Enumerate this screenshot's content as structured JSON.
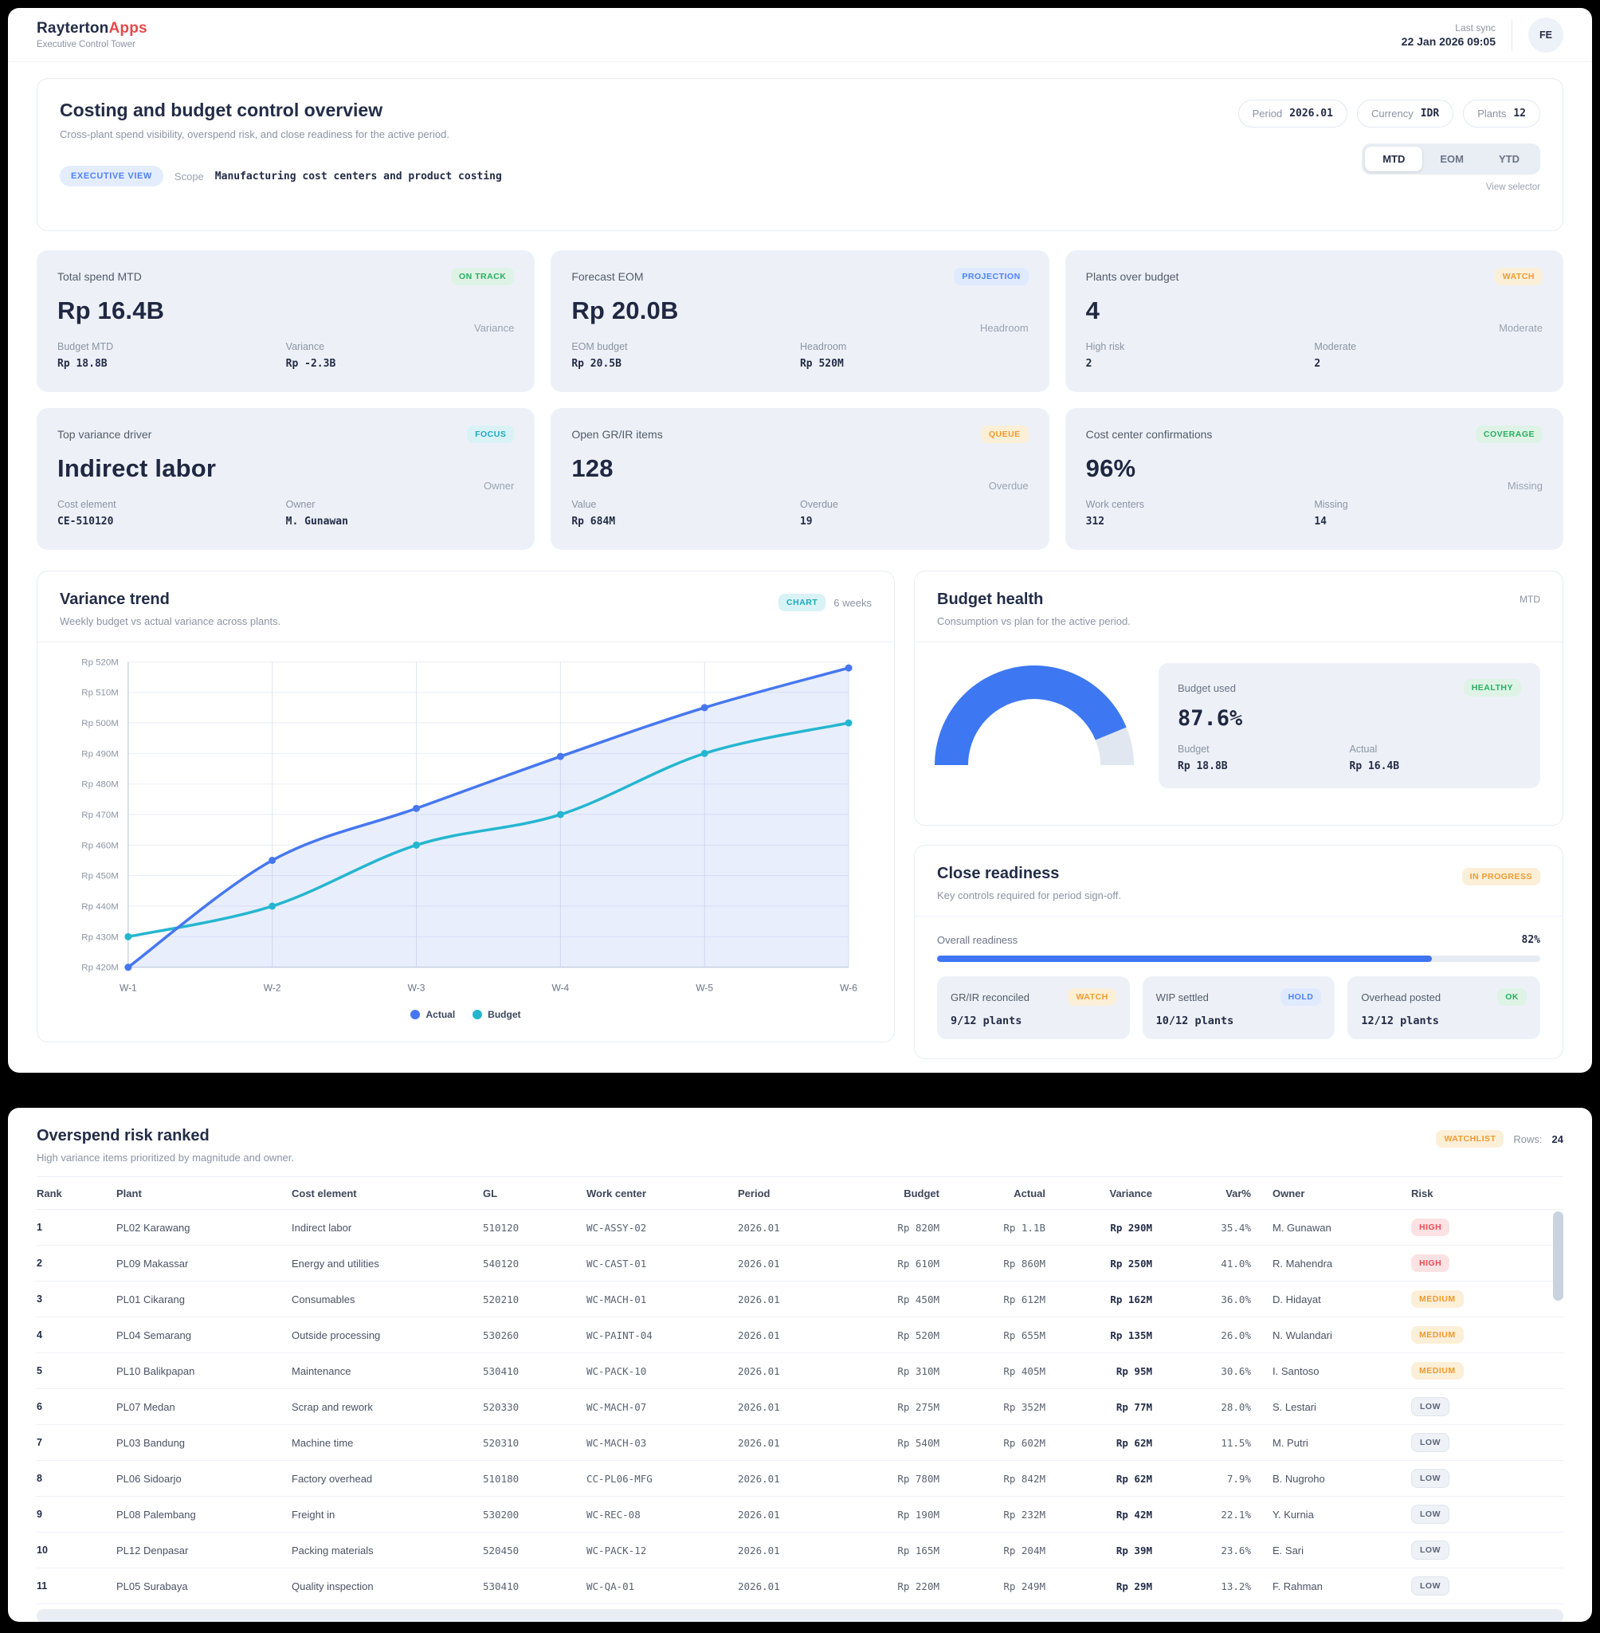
{
  "header": {
    "brand_primary": "Rayterton",
    "brand_accent": "Apps",
    "subtitle": "Executive Control Tower",
    "last_sync_label": "Last sync",
    "last_sync_value": "22 Jan 2026 09:05",
    "avatar_initials": "FE"
  },
  "overview": {
    "title": "Costing and budget control overview",
    "subtitle": "Cross-plant spend visibility, overspend risk, and close readiness for the active period.",
    "view_badge": "EXECUTIVE VIEW",
    "scope_label": "Scope",
    "scope_value": "Manufacturing cost centers and product costing",
    "chips": [
      {
        "label": "Period",
        "value": "2026.01"
      },
      {
        "label": "Currency",
        "value": "IDR"
      },
      {
        "label": "Plants",
        "value": "12"
      }
    ],
    "view_tabs": [
      "MTD",
      "EOM",
      "YTD"
    ],
    "active_tab": "MTD",
    "view_selector_label": "View selector"
  },
  "kpis": [
    {
      "title": "Total spend MTD",
      "badge": "ON TRACK",
      "badge_color": "green",
      "value": "Rp 16.4B",
      "side_label": "Variance",
      "stats": [
        {
          "label": "Budget MTD",
          "value": "Rp 18.8B"
        },
        {
          "label": "Variance",
          "value": "Rp -2.3B"
        }
      ]
    },
    {
      "title": "Forecast EOM",
      "badge": "PROJECTION",
      "badge_color": "blue",
      "value": "Rp 20.0B",
      "side_label": "Headroom",
      "stats": [
        {
          "label": "EOM budget",
          "value": "Rp 20.5B"
        },
        {
          "label": "Headroom",
          "value": "Rp 520M"
        }
      ]
    },
    {
      "title": "Plants over budget",
      "badge": "WATCH",
      "badge_color": "orange",
      "value": "4",
      "side_label": "Moderate",
      "stats": [
        {
          "label": "High risk",
          "value": "2"
        },
        {
          "label": "Moderate",
          "value": "2"
        }
      ]
    },
    {
      "title": "Top variance driver",
      "badge": "FOCUS",
      "badge_color": "cyan",
      "value": "Indirect labor",
      "side_label": "Owner",
      "stats": [
        {
          "label": "Cost element",
          "value": "CE-510120"
        },
        {
          "label": "Owner",
          "value": "M. Gunawan"
        }
      ]
    },
    {
      "title": "Open GR/IR items",
      "badge": "QUEUE",
      "badge_color": "orange",
      "value": "128",
      "side_label": "Overdue",
      "stats": [
        {
          "label": "Value",
          "value": "Rp 684M"
        },
        {
          "label": "Overdue",
          "value": "19"
        }
      ]
    },
    {
      "title": "Cost center confirmations",
      "badge": "COVERAGE",
      "badge_color": "green",
      "value": "96%",
      "side_label": "Missing",
      "stats": [
        {
          "label": "Work centers",
          "value": "312"
        },
        {
          "label": "Missing",
          "value": "14"
        }
      ]
    }
  ],
  "chart_card": {
    "title": "Variance trend",
    "subtitle": "Weekly budget vs actual variance across plants.",
    "badge": "CHART",
    "range_label": "6 weeks"
  },
  "chart_data": {
    "type": "line",
    "x": [
      "W-1",
      "W-2",
      "W-3",
      "W-4",
      "W-5",
      "W-6"
    ],
    "series": [
      {
        "name": "Actual",
        "color": "#4677f0",
        "values": [
          420,
          455,
          472,
          489,
          505,
          518
        ],
        "area": true
      },
      {
        "name": "Budget",
        "color": "#24b6cf",
        "values": [
          430,
          440,
          460,
          470,
          490,
          500
        ],
        "area": false
      }
    ],
    "title": "Variance trend",
    "xlabel": "",
    "ylabel": "",
    "ylabel_prefix": "Rp ",
    "ylabel_suffix": "M",
    "ylim": [
      420,
      520
    ],
    "ytick_step": 10,
    "grid": true,
    "legend_position": "bottom"
  },
  "budget_health": {
    "title": "Budget health",
    "period_label": "MTD",
    "subtitle": "Consumption vs plan for the active period.",
    "used_label": "Budget used",
    "status_badge": "HEALTHY",
    "used_pct": "87.6%",
    "used_pct_value": 87.6,
    "stats": [
      {
        "label": "Budget",
        "value": "Rp 18.8B"
      },
      {
        "label": "Actual",
        "value": "Rp 16.4B"
      }
    ]
  },
  "close_readiness": {
    "title": "Close readiness",
    "subtitle": "Key controls required for period sign-off.",
    "status_badge": "IN PROGRESS",
    "overall_label": "Overall readiness",
    "overall_pct": "82%",
    "overall_pct_value": 82,
    "controls": [
      {
        "label": "GR/IR reconciled",
        "badge": "WATCH",
        "badge_color": "orange",
        "value": "9/12 plants"
      },
      {
        "label": "WIP settled",
        "badge": "HOLD",
        "badge_color": "blue",
        "value": "10/12 plants"
      },
      {
        "label": "Overhead posted",
        "badge": "OK",
        "badge_color": "green",
        "value": "12/12 plants"
      }
    ]
  },
  "table": {
    "title": "Overspend risk ranked",
    "subtitle": "High variance items prioritized by magnitude and owner.",
    "badge": "WATCHLIST",
    "rows_label": "Rows:",
    "rows_count": "24",
    "columns": [
      "Rank",
      "Plant",
      "Cost element",
      "GL",
      "Work center",
      "Period",
      "Budget",
      "Actual",
      "Variance",
      "Var%",
      "Owner",
      "Risk"
    ],
    "rows": [
      [
        "1",
        "PL02 Karawang",
        "Indirect labor",
        "510120",
        "WC-ASSY-02",
        "2026.01",
        "Rp 820M",
        "Rp 1.1B",
        "Rp 290M",
        "35.4%",
        "M. Gunawan",
        "HIGH"
      ],
      [
        "2",
        "PL09 Makassar",
        "Energy and utilities",
        "540120",
        "WC-CAST-01",
        "2026.01",
        "Rp 610M",
        "Rp 860M",
        "Rp 250M",
        "41.0%",
        "R. Mahendra",
        "HIGH"
      ],
      [
        "3",
        "PL01 Cikarang",
        "Consumables",
        "520210",
        "WC-MACH-01",
        "2026.01",
        "Rp 450M",
        "Rp 612M",
        "Rp 162M",
        "36.0%",
        "D. Hidayat",
        "MEDIUM"
      ],
      [
        "4",
        "PL04 Semarang",
        "Outside processing",
        "530260",
        "WC-PAINT-04",
        "2026.01",
        "Rp 520M",
        "Rp 655M",
        "Rp 135M",
        "26.0%",
        "N. Wulandari",
        "MEDIUM"
      ],
      [
        "5",
        "PL10 Balikpapan",
        "Maintenance",
        "530410",
        "WC-PACK-10",
        "2026.01",
        "Rp 310M",
        "Rp 405M",
        "Rp 95M",
        "30.6%",
        "I. Santoso",
        "MEDIUM"
      ],
      [
        "6",
        "PL07 Medan",
        "Scrap and rework",
        "520330",
        "WC-MACH-07",
        "2026.01",
        "Rp 275M",
        "Rp 352M",
        "Rp 77M",
        "28.0%",
        "S. Lestari",
        "LOW"
      ],
      [
        "7",
        "PL03 Bandung",
        "Machine time",
        "520310",
        "WC-MACH-03",
        "2026.01",
        "Rp 540M",
        "Rp 602M",
        "Rp 62M",
        "11.5%",
        "M. Putri",
        "LOW"
      ],
      [
        "8",
        "PL06 Sidoarjo",
        "Factory overhead",
        "510180",
        "CC-PL06-MFG",
        "2026.01",
        "Rp 780M",
        "Rp 842M",
        "Rp 62M",
        "7.9%",
        "B. Nugroho",
        "LOW"
      ],
      [
        "9",
        "PL08 Palembang",
        "Freight in",
        "530200",
        "WC-REC-08",
        "2026.01",
        "Rp 190M",
        "Rp 232M",
        "Rp 42M",
        "22.1%",
        "Y. Kurnia",
        "LOW"
      ],
      [
        "10",
        "PL12 Denpasar",
        "Packing materials",
        "520450",
        "WC-PACK-12",
        "2026.01",
        "Rp 165M",
        "Rp 204M",
        "Rp 39M",
        "23.6%",
        "E. Sari",
        "LOW"
      ],
      [
        "11",
        "PL05 Surabaya",
        "Quality inspection",
        "530410",
        "WC-QA-01",
        "2026.01",
        "Rp 220M",
        "Rp 249M",
        "Rp 29M",
        "13.2%",
        "F. Rahman",
        "LOW"
      ]
    ]
  },
  "colors": {
    "brand_accent": "#e8474b",
    "accent_blue": "#4677f0",
    "teal": "#24b6cf",
    "status_green": "#27ae60",
    "status_orange": "#f09a2e",
    "status_red": "#ed4b50",
    "gauge_blue": "#3d78f2"
  }
}
